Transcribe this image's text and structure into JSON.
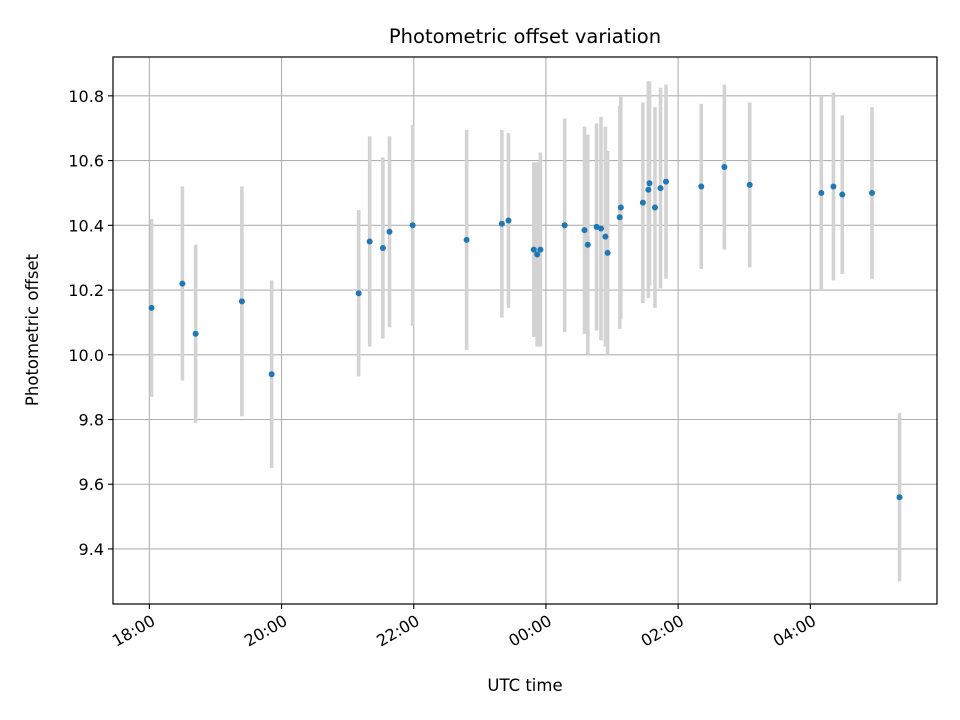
{
  "chart_data": {
    "type": "scatter",
    "title": "Photometric offset variation",
    "xlabel": "UTC time",
    "ylabel": "Photometric offset",
    "x_axis": {
      "unit": "UTC time",
      "range": [
        "17:27",
        "05:55"
      ],
      "ticks": [
        "18:00",
        "20:00",
        "22:00",
        "00:00",
        "02:00",
        "04:00"
      ]
    },
    "y_axis": {
      "range": [
        9.23,
        10.92
      ],
      "ticks": [
        9.4,
        9.6,
        9.8,
        10.0,
        10.2,
        10.4,
        10.6,
        10.8
      ]
    },
    "grid": true,
    "colors": {
      "point": "#1f77b4",
      "errorbar": "#d3d3d3",
      "grid": "#b0b0b0"
    },
    "points": [
      {
        "x": "18:02",
        "y": 10.145,
        "err": 0.275
      },
      {
        "x": "18:30",
        "y": 10.22,
        "err": 0.3
      },
      {
        "x": "18:42",
        "y": 10.065,
        "err": 0.275
      },
      {
        "x": "19:24",
        "y": 10.165,
        "err": 0.355
      },
      {
        "x": "19:51",
        "y": 9.94,
        "err": 0.29
      },
      {
        "x": "21:10",
        "y": 10.19,
        "err": 0.257
      },
      {
        "x": "21:20",
        "y": 10.35,
        "err": 0.325
      },
      {
        "x": "21:32",
        "y": 10.33,
        "err": 0.28
      },
      {
        "x": "21:38",
        "y": 10.38,
        "err": 0.295
      },
      {
        "x": "21:59",
        "y": 10.4,
        "err": 0.31
      },
      {
        "x": "22:48",
        "y": 10.355,
        "err": 0.34
      },
      {
        "x": "23:20",
        "y": 10.405,
        "err": 0.29
      },
      {
        "x": "23:26",
        "y": 10.415,
        "err": 0.27
      },
      {
        "x": "23:49",
        "y": 10.325,
        "err": 0.27
      },
      {
        "x": "23:52",
        "y": 10.31,
        "err": 0.285
      },
      {
        "x": "23:55",
        "y": 10.325,
        "err": 0.3
      },
      {
        "x": "00:17",
        "y": 10.4,
        "err": 0.33
      },
      {
        "x": "00:35",
        "y": 10.385,
        "err": 0.32
      },
      {
        "x": "00:38",
        "y": 10.34,
        "err": 0.34
      },
      {
        "x": "00:46",
        "y": 10.395,
        "err": 0.32
      },
      {
        "x": "00:50",
        "y": 10.39,
        "err": 0.345
      },
      {
        "x": "00:54",
        "y": 10.365,
        "err": 0.34
      },
      {
        "x": "00:56",
        "y": 10.315,
        "err": 0.315
      },
      {
        "x": "01:07",
        "y": 10.425,
        "err": 0.345
      },
      {
        "x": "01:08",
        "y": 10.455,
        "err": 0.345
      },
      {
        "x": "01:28",
        "y": 10.47,
        "err": 0.31
      },
      {
        "x": "01:33",
        "y": 10.51,
        "err": 0.335
      },
      {
        "x": "01:34",
        "y": 10.53,
        "err": 0.315
      },
      {
        "x": "01:39",
        "y": 10.455,
        "err": 0.31
      },
      {
        "x": "01:44",
        "y": 10.515,
        "err": 0.31
      },
      {
        "x": "01:49",
        "y": 10.535,
        "err": 0.3
      },
      {
        "x": "02:21",
        "y": 10.52,
        "err": 0.255
      },
      {
        "x": "02:42",
        "y": 10.58,
        "err": 0.255
      },
      {
        "x": "03:05",
        "y": 10.525,
        "err": 0.255
      },
      {
        "x": "04:10",
        "y": 10.5,
        "err": 0.3
      },
      {
        "x": "04:21",
        "y": 10.52,
        "err": 0.29
      },
      {
        "x": "04:29",
        "y": 10.495,
        "err": 0.245
      },
      {
        "x": "04:56",
        "y": 10.5,
        "err": 0.265
      },
      {
        "x": "05:21",
        "y": 9.56,
        "err": 0.26
      }
    ]
  }
}
